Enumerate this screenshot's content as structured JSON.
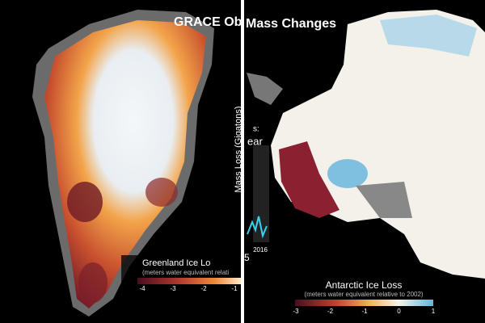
{
  "header": {
    "title_left": "GRACE Ob",
    "title_right": "Mass Changes"
  },
  "left_panel": {
    "legend": {
      "title": "Greenland Ice Lo",
      "subtitle": "(meters water equivalent relati",
      "ticks": [
        -4,
        -3,
        -2,
        -1
      ]
    }
  },
  "overlay": {
    "axis_label": "Mass Loss (Gigatons)",
    "fragment_1": "s:",
    "fragment_2": "ear",
    "year": "2016",
    "fragment_3": "5"
  },
  "right_panel": {
    "legend": {
      "title": "Antarctic Ice Loss",
      "subtitle": "(meters water equivalent relative to 2002)",
      "ticks": [
        -3,
        -2,
        -1,
        0,
        1
      ]
    }
  }
}
